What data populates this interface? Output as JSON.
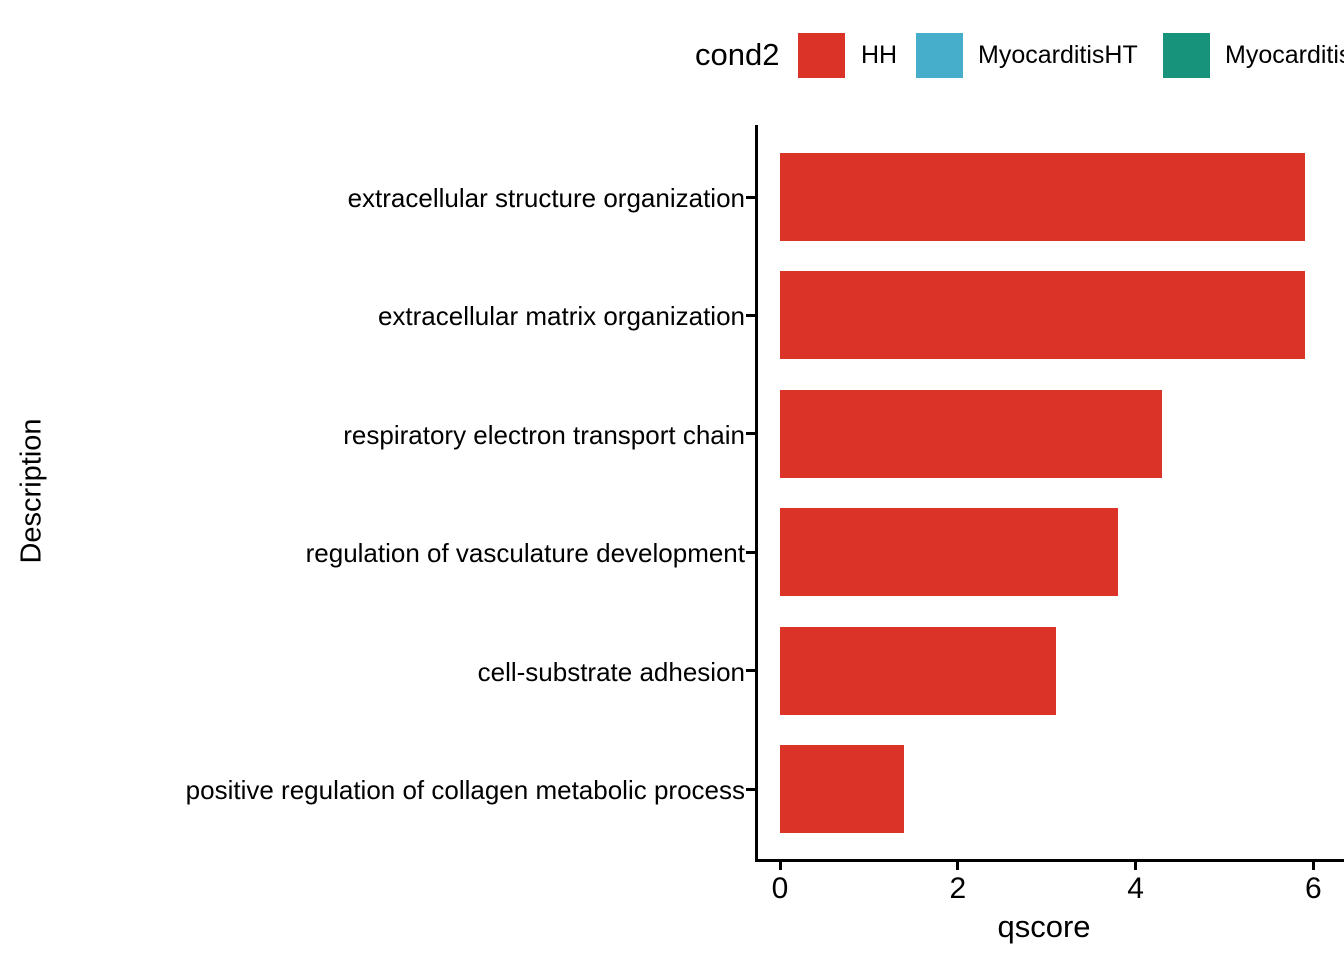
{
  "figure": {
    "background": "#ffffff",
    "text_color": "#000000",
    "axis_color": "#000000"
  },
  "legend": {
    "title": "cond2",
    "entries": [
      {
        "label": "HH",
        "color": "#DB3327"
      },
      {
        "label": "MyocarditisHT",
        "color": "#46ADCB"
      },
      {
        "label": "Myocarditis",
        "color": "#17937B",
        "clipped_at_right_edge": true
      }
    ]
  },
  "chart_data": {
    "type": "bar",
    "orientation": "horizontal",
    "title": "",
    "xlabel": "qscore",
    "ylabel": "Description",
    "xlim": [
      0,
      6
    ],
    "xticks": [
      0,
      2,
      4,
      6
    ],
    "grid": false,
    "legend_position": "top",
    "legend_title": "cond2",
    "categories": [
      "extracellular structure organization",
      "extracellular matrix organization",
      "respiratory electron transport chain",
      "regulation of vasculature development",
      "cell-substrate adhesion",
      "positive regulation of collagen metabolic process"
    ],
    "series": [
      {
        "name": "HH",
        "color": "#DB3327",
        "values": [
          5.9,
          5.9,
          4.3,
          3.8,
          3.1,
          1.4
        ]
      }
    ]
  }
}
